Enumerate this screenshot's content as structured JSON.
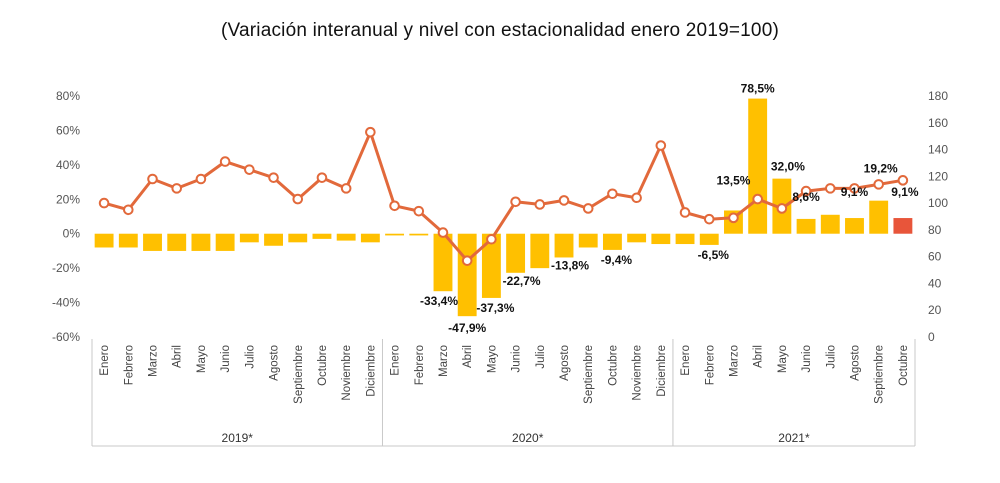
{
  "title": "(Variación interanual y nivel con estacionalidad enero 2019=100)",
  "chart_data": {
    "type": "bar+line",
    "title": "(Variación interanual y nivel con estacionalidad enero 2019=100)",
    "categories": [
      "Enero",
      "Febrero",
      "Marzo",
      "Abril",
      "Mayo",
      "Junio",
      "Julio",
      "Agosto",
      "Septiembre",
      "Octubre",
      "Noviembre",
      "Diciembre",
      "Enero",
      "Febrero",
      "Marzo",
      "Abril",
      "Mayo",
      "Junio",
      "Julio",
      "Agosto",
      "Septiembre",
      "Octubre",
      "Noviembre",
      "Diciembre",
      "Enero",
      "Febrero",
      "Marzo",
      "Abril",
      "Mayo",
      "Junio",
      "Julio",
      "Agosto",
      "Septiembre",
      "Octubre"
    ],
    "groups": [
      {
        "label": "2019*",
        "count": 12
      },
      {
        "label": "2020*",
        "count": 12
      },
      {
        "label": "2021*",
        "count": 10
      }
    ],
    "left_axis": {
      "ylim": [
        -60,
        80
      ],
      "ticks": [
        "80%",
        "60%",
        "40%",
        "20%",
        "0%",
        "-20%",
        "-40%",
        "-60%"
      ],
      "tick_values": [
        80,
        60,
        40,
        20,
        0,
        -20,
        -40,
        -60
      ]
    },
    "right_axis": {
      "ylim": [
        0,
        180
      ],
      "ticks": [
        "180",
        "160",
        "140",
        "120",
        "100",
        "80",
        "60",
        "40",
        "20",
        "0"
      ],
      "tick_values": [
        180,
        160,
        140,
        120,
        100,
        80,
        60,
        40,
        20,
        0
      ]
    },
    "series": [
      {
        "name": "Variación interanual",
        "kind": "bar",
        "axis": "left",
        "color": "#FFC000",
        "highlight_last_color": "#E8553A",
        "values": [
          -8,
          -8,
          -10,
          -10,
          -10,
          -10,
          -5,
          -7,
          -5,
          -3,
          -4,
          -5,
          -1,
          -1,
          -33.4,
          -47.9,
          -37.3,
          -22.7,
          -20,
          -13.8,
          -8,
          -9.4,
          -5,
          -6,
          -6,
          -6.5,
          13.5,
          78.5,
          32.0,
          8.6,
          11,
          9.1,
          19.2,
          9.1
        ]
      },
      {
        "name": "Nivel con estacionalidad",
        "kind": "line",
        "axis": "right",
        "color": "#E2693B",
        "values": [
          100,
          95,
          118,
          111,
          118,
          131,
          125,
          119,
          103,
          119,
          111,
          153,
          98,
          94,
          78,
          57,
          73,
          101,
          99,
          102,
          96,
          107,
          104,
          143,
          93,
          88,
          89,
          103,
          96,
          109,
          111,
          111,
          114,
          117
        ]
      }
    ],
    "data_labels": [
      {
        "index": 14,
        "text": "-33,4%"
      },
      {
        "index": 15,
        "text": "-47,9%"
      },
      {
        "index": 16,
        "text": "-37,3%"
      },
      {
        "index": 17,
        "text": "-22,7%"
      },
      {
        "index": 19,
        "text": "-13,8%"
      },
      {
        "index": 21,
        "text": "-9,4%"
      },
      {
        "index": 25,
        "text": "-6,5%"
      },
      {
        "index": 26,
        "text": "13,5%"
      },
      {
        "index": 27,
        "text": "78,5%"
      },
      {
        "index": 28,
        "text": "32,0%"
      },
      {
        "index": 29,
        "text": "8,6%"
      },
      {
        "index": 31,
        "text": "9,1%"
      },
      {
        "index": 32,
        "text": "19,2%"
      },
      {
        "index": 33,
        "text": "9,1%"
      }
    ]
  }
}
